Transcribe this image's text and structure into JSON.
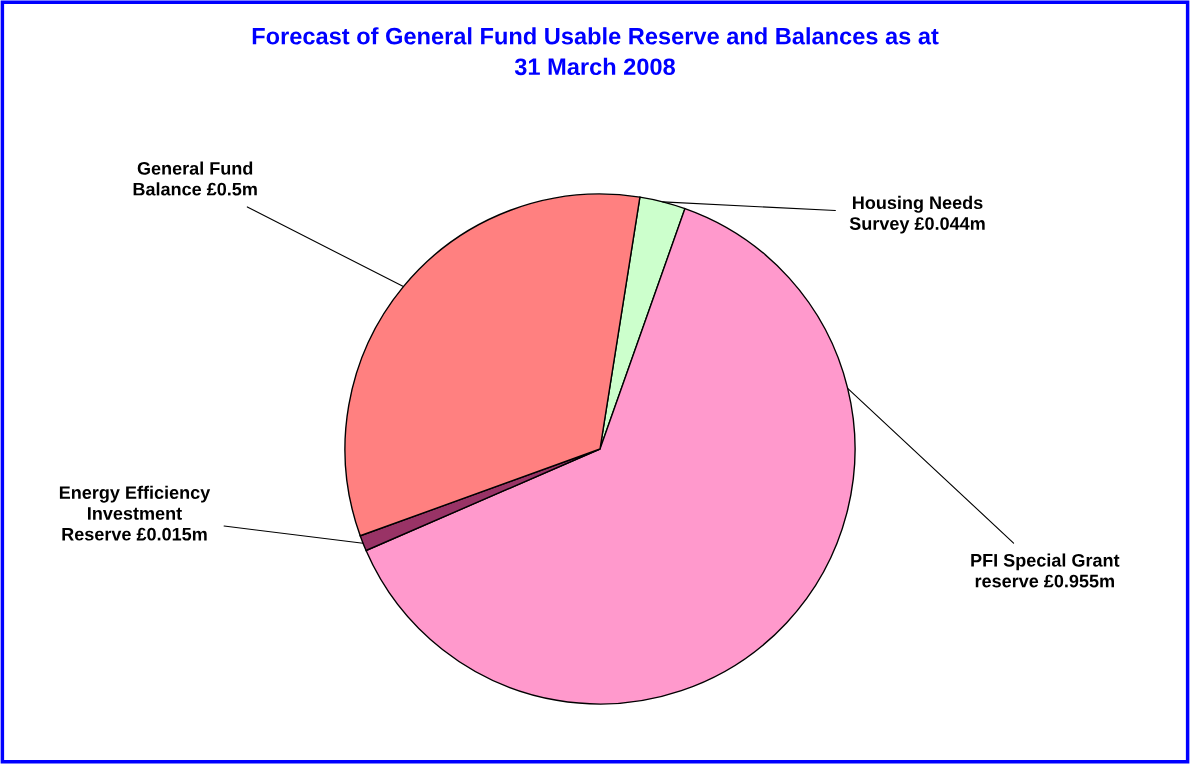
{
  "chart_data": {
    "type": "pie",
    "title": "Forecast of General Fund Usable Reserve and Balances as at\n31 March 2008",
    "categories": [
      "Housing Needs\nSurvey",
      "PFI Special Grant\nreserve",
      "Energy Efficiency\nInvestment\nReserve",
      "General Fund\nBalance"
    ],
    "values": [
      0.044,
      0.955,
      0.015,
      0.5
    ],
    "value_labels": [
      "£0.044m",
      "£0.955m",
      "£0.015m",
      "£0.5m"
    ],
    "colors": [
      "#ccffcc",
      "#ff99cc",
      "#993366",
      "#ff8080"
    ],
    "legend": false
  }
}
